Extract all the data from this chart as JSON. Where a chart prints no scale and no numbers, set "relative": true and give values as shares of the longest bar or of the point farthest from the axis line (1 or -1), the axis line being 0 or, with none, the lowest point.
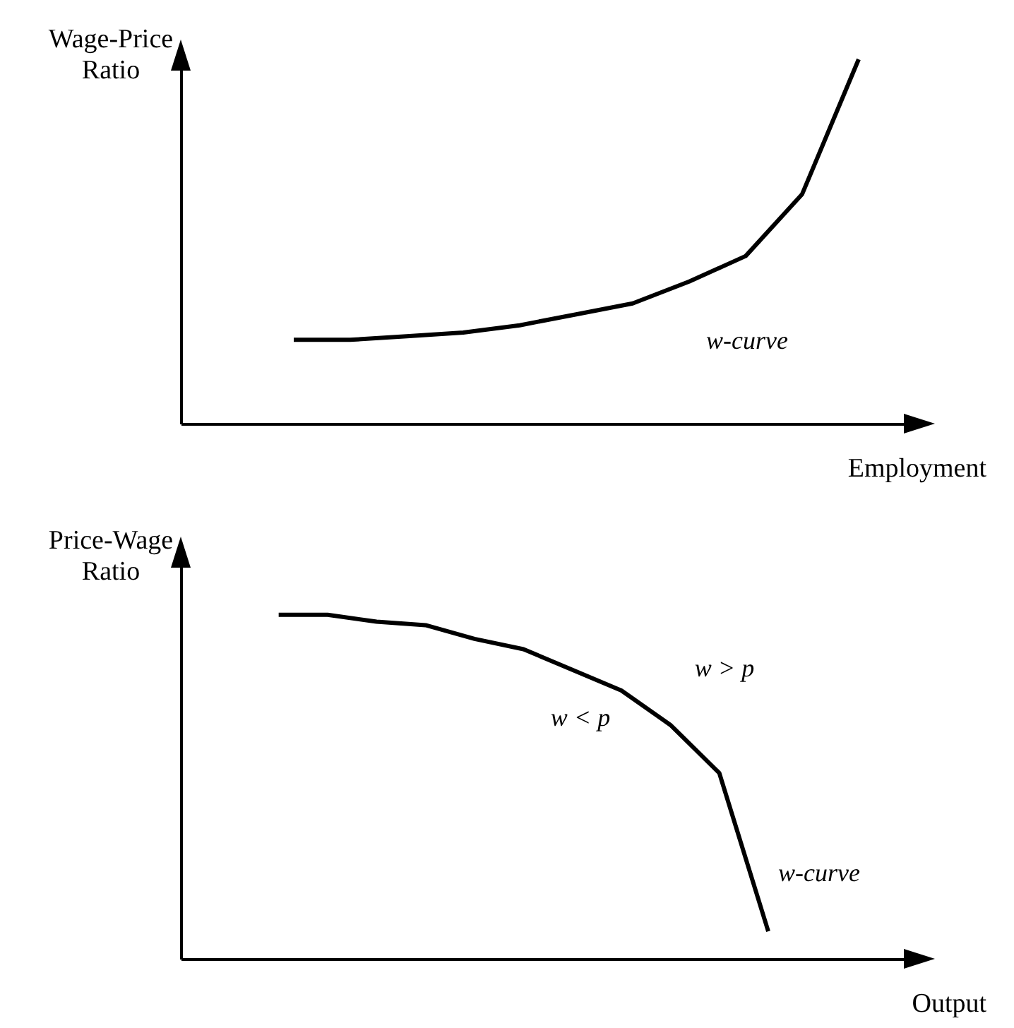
{
  "chart_data": [
    {
      "type": "line",
      "relative": true,
      "ylabel": "Wage-Price Ratio",
      "xlabel": "Employment",
      "categories": [
        null,
        null,
        null,
        null,
        null,
        null,
        null,
        null,
        null,
        null,
        null,
        null,
        null,
        null
      ],
      "series": [
        {
          "color": "#000000",
          "values": [
            null,
            null,
            0.23,
            0.23,
            0.24,
            0.25,
            0.27,
            0.3,
            0.33,
            0.39,
            0.46,
            0.63,
            1,
            null
          ]
        }
      ],
      "annotations": [
        "w-curve"
      ]
    },
    {
      "type": "line",
      "relative": true,
      "ylabel": "Price-Wage Ratio",
      "xlabel": "Output",
      "categories": [
        null,
        null,
        null,
        null,
        null,
        null,
        null,
        null,
        null,
        null,
        null,
        null,
        null,
        null,
        null,
        null
      ],
      "series": [
        {
          "color": "#000000",
          "values": [
            null,
            null,
            1,
            1,
            0.98,
            0.97,
            0.93,
            0.9,
            0.84,
            0.78,
            0.68,
            0.54,
            0.08,
            null,
            null,
            null
          ]
        }
      ],
      "annotations": [
        "w > p",
        "w < p",
        "w-curve"
      ]
    }
  ]
}
